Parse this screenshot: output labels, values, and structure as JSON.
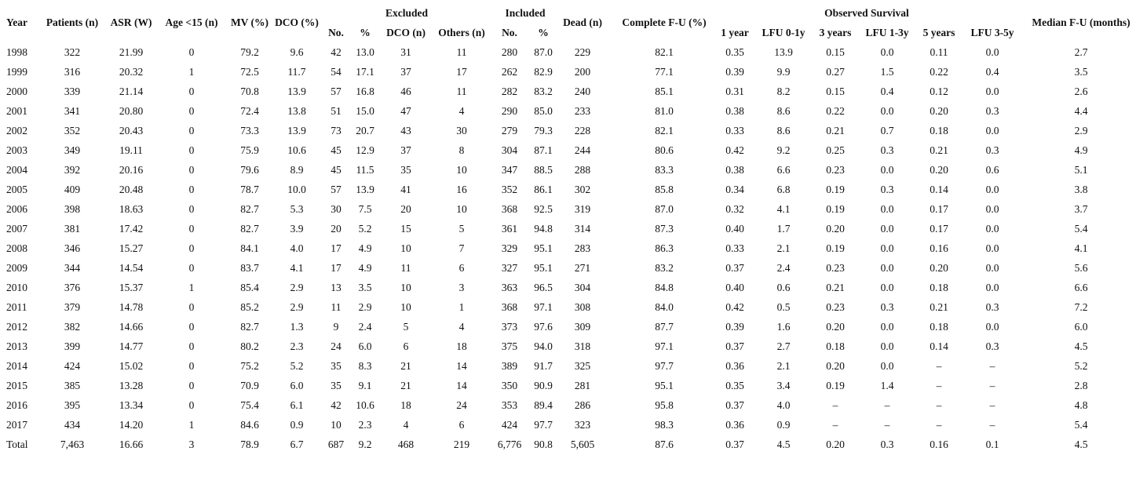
{
  "header": {
    "groups": [
      "Excluded",
      "Included",
      "Observed Survival"
    ],
    "columns": [
      "Year",
      "Patients (n)",
      "ASR (W)",
      "Age <15 (n)",
      "MV (%)",
      "DCO (%)",
      "No.",
      "%",
      "DCO (n)",
      "Others (n)",
      "No.",
      "%",
      "Dead (n)",
      "Complete F-U (%)",
      "1 year",
      "LFU 0-1y",
      "3 years",
      "LFU 1-3y",
      "5 years",
      "LFU 3-5y",
      "Median F-U (months)"
    ]
  },
  "rows": [
    [
      "1998",
      "322",
      "21.99",
      "0",
      "79.2",
      "9.6",
      "42",
      "13.0",
      "31",
      "11",
      "280",
      "87.0",
      "229",
      "82.1",
      "0.35",
      "13.9",
      "0.15",
      "0.0",
      "0.11",
      "0.0",
      "2.7"
    ],
    [
      "1999",
      "316",
      "20.32",
      "1",
      "72.5",
      "11.7",
      "54",
      "17.1",
      "37",
      "17",
      "262",
      "82.9",
      "200",
      "77.1",
      "0.39",
      "9.9",
      "0.27",
      "1.5",
      "0.22",
      "0.4",
      "3.5"
    ],
    [
      "2000",
      "339",
      "21.14",
      "0",
      "70.8",
      "13.9",
      "57",
      "16.8",
      "46",
      "11",
      "282",
      "83.2",
      "240",
      "85.1",
      "0.31",
      "8.2",
      "0.15",
      "0.4",
      "0.12",
      "0.0",
      "2.6"
    ],
    [
      "2001",
      "341",
      "20.80",
      "0",
      "72.4",
      "13.8",
      "51",
      "15.0",
      "47",
      "4",
      "290",
      "85.0",
      "233",
      "81.0",
      "0.38",
      "8.6",
      "0.22",
      "0.0",
      "0.20",
      "0.3",
      "4.4"
    ],
    [
      "2002",
      "352",
      "20.43",
      "0",
      "73.3",
      "13.9",
      "73",
      "20.7",
      "43",
      "30",
      "279",
      "79.3",
      "228",
      "82.1",
      "0.33",
      "8.6",
      "0.21",
      "0.7",
      "0.18",
      "0.0",
      "2.9"
    ],
    [
      "2003",
      "349",
      "19.11",
      "0",
      "75.9",
      "10.6",
      "45",
      "12.9",
      "37",
      "8",
      "304",
      "87.1",
      "244",
      "80.6",
      "0.42",
      "9.2",
      "0.25",
      "0.3",
      "0.21",
      "0.3",
      "4.9"
    ],
    [
      "2004",
      "392",
      "20.16",
      "0",
      "79.6",
      "8.9",
      "45",
      "11.5",
      "35",
      "10",
      "347",
      "88.5",
      "288",
      "83.3",
      "0.38",
      "6.6",
      "0.23",
      "0.0",
      "0.20",
      "0.6",
      "5.1"
    ],
    [
      "2005",
      "409",
      "20.48",
      "0",
      "78.7",
      "10.0",
      "57",
      "13.9",
      "41",
      "16",
      "352",
      "86.1",
      "302",
      "85.8",
      "0.34",
      "6.8",
      "0.19",
      "0.3",
      "0.14",
      "0.0",
      "3.8"
    ],
    [
      "2006",
      "398",
      "18.63",
      "0",
      "82.7",
      "5.3",
      "30",
      "7.5",
      "20",
      "10",
      "368",
      "92.5",
      "319",
      "87.0",
      "0.32",
      "4.1",
      "0.19",
      "0.0",
      "0.17",
      "0.0",
      "3.7"
    ],
    [
      "2007",
      "381",
      "17.42",
      "0",
      "82.7",
      "3.9",
      "20",
      "5.2",
      "15",
      "5",
      "361",
      "94.8",
      "314",
      "87.3",
      "0.40",
      "1.7",
      "0.20",
      "0.0",
      "0.17",
      "0.0",
      "5.4"
    ],
    [
      "2008",
      "346",
      "15.27",
      "0",
      "84.1",
      "4.0",
      "17",
      "4.9",
      "10",
      "7",
      "329",
      "95.1",
      "283",
      "86.3",
      "0.33",
      "2.1",
      "0.19",
      "0.0",
      "0.16",
      "0.0",
      "4.1"
    ],
    [
      "2009",
      "344",
      "14.54",
      "0",
      "83.7",
      "4.1",
      "17",
      "4.9",
      "11",
      "6",
      "327",
      "95.1",
      "271",
      "83.2",
      "0.37",
      "2.4",
      "0.23",
      "0.0",
      "0.20",
      "0.0",
      "5.6"
    ],
    [
      "2010",
      "376",
      "15.37",
      "1",
      "85.4",
      "2.9",
      "13",
      "3.5",
      "10",
      "3",
      "363",
      "96.5",
      "304",
      "84.8",
      "0.40",
      "0.6",
      "0.21",
      "0.0",
      "0.18",
      "0.0",
      "6.6"
    ],
    [
      "2011",
      "379",
      "14.78",
      "0",
      "85.2",
      "2.9",
      "11",
      "2.9",
      "10",
      "1",
      "368",
      "97.1",
      "308",
      "84.0",
      "0.42",
      "0.5",
      "0.23",
      "0.3",
      "0.21",
      "0.3",
      "7.2"
    ],
    [
      "2012",
      "382",
      "14.66",
      "0",
      "82.7",
      "1.3",
      "9",
      "2.4",
      "5",
      "4",
      "373",
      "97.6",
      "309",
      "87.7",
      "0.39",
      "1.6",
      "0.20",
      "0.0",
      "0.18",
      "0.0",
      "6.0"
    ],
    [
      "2013",
      "399",
      "14.77",
      "0",
      "80.2",
      "2.3",
      "24",
      "6.0",
      "6",
      "18",
      "375",
      "94.0",
      "318",
      "97.1",
      "0.37",
      "2.7",
      "0.18",
      "0.0",
      "0.14",
      "0.3",
      "4.5"
    ],
    [
      "2014",
      "424",
      "15.02",
      "0",
      "75.2",
      "5.2",
      "35",
      "8.3",
      "21",
      "14",
      "389",
      "91.7",
      "325",
      "97.7",
      "0.36",
      "2.1",
      "0.20",
      "0.0",
      "–",
      "–",
      "5.2"
    ],
    [
      "2015",
      "385",
      "13.28",
      "0",
      "70.9",
      "6.0",
      "35",
      "9.1",
      "21",
      "14",
      "350",
      "90.9",
      "281",
      "95.1",
      "0.35",
      "3.4",
      "0.19",
      "1.4",
      "–",
      "–",
      "2.8"
    ],
    [
      "2016",
      "395",
      "13.34",
      "0",
      "75.4",
      "6.1",
      "42",
      "10.6",
      "18",
      "24",
      "353",
      "89.4",
      "286",
      "95.8",
      "0.37",
      "4.0",
      "–",
      "–",
      "–",
      "–",
      "4.8"
    ],
    [
      "2017",
      "434",
      "14.20",
      "1",
      "84.6",
      "0.9",
      "10",
      "2.3",
      "4",
      "6",
      "424",
      "97.7",
      "323",
      "98.3",
      "0.36",
      "0.9",
      "–",
      "–",
      "–",
      "–",
      "5.4"
    ],
    [
      "Total",
      "7,463",
      "16.66",
      "3",
      "78.9",
      "6.7",
      "687",
      "9.2",
      "468",
      "219",
      "6,776",
      "90.8",
      "5,605",
      "87.6",
      "0.37",
      "4.5",
      "0.20",
      "0.3",
      "0.16",
      "0.1",
      "4.5"
    ]
  ]
}
